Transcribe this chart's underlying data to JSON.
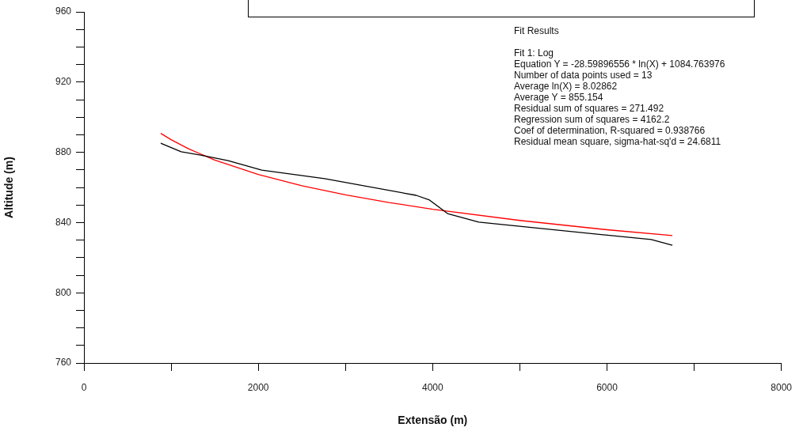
{
  "chart_data": {
    "type": "line",
    "xlabel": "Extensão (m)",
    "ylabel": "Altitude (m)",
    "xlim": [
      0,
      8000
    ],
    "xticks": [
      0,
      {
        "value": 1000,
        "label": null
      },
      2000,
      {
        "value": 3000,
        "label": null
      },
      4000,
      {
        "value": 5000,
        "label": null
      },
      6000,
      {
        "value": 7000,
        "label": null
      },
      8000
    ],
    "ylim": [
      760,
      960
    ],
    "yticks": [
      760,
      {
        "value": 770,
        "label": null
      },
      {
        "value": 780,
        "label": null
      },
      {
        "value": 790,
        "label": null
      },
      800,
      {
        "value": 810,
        "label": null
      },
      {
        "value": 820,
        "label": null
      },
      {
        "value": 830,
        "label": null
      },
      840,
      {
        "value": 850,
        "label": null
      },
      {
        "value": 860,
        "label": null
      },
      {
        "value": 870,
        "label": null
      },
      880,
      {
        "value": 890,
        "label": null
      },
      {
        "value": 900,
        "label": null
      },
      {
        "value": 910,
        "label": null
      },
      920,
      {
        "value": 930,
        "label": null
      },
      {
        "value": 940,
        "label": null
      },
      {
        "value": 950,
        "label": null
      },
      960
    ],
    "grid": false,
    "legend": false,
    "marker": "none",
    "line_style": "solid",
    "series": [
      {
        "type": "line",
        "color": "#000000",
        "x": [
          881,
          1115,
          1384,
          1654,
          2040,
          2760,
          3811,
          3964,
          4171,
          4530,
          6508,
          6750
        ],
        "values": [
          885.2,
          880.3,
          878,
          875.3,
          869.9,
          865,
          855.5,
          852.8,
          845.1,
          840.2,
          830.3,
          827.1
        ]
      },
      {
        "type": "line",
        "color": "#ff0000",
        "x": [
          881,
          1000,
          1200,
          1500,
          2000,
          2500,
          3000,
          3500,
          4000,
          5000,
          6000,
          6750
        ],
        "values": [
          890.8,
          887.2,
          882,
          875.6,
          867.4,
          861,
          855.8,
          851.4,
          847.6,
          841.2,
          835.9,
          832.6
        ]
      }
    ],
    "annotations": [
      "Fit Results",
      "Fit 1: Log",
      "Equation Y = -28.59896556 * ln(X) + 1084.763976",
      "Number of data points used = 13",
      "Average ln(X) = 8.02862",
      "Average Y = 855.154",
      "Residual sum of squares = 271.492",
      "Regression sum of squares = 4162.2",
      "Coef of determination, R-squared = 0.938766",
      "Residual mean square, sigma-hat-sq'd = 24.6811"
    ]
  }
}
